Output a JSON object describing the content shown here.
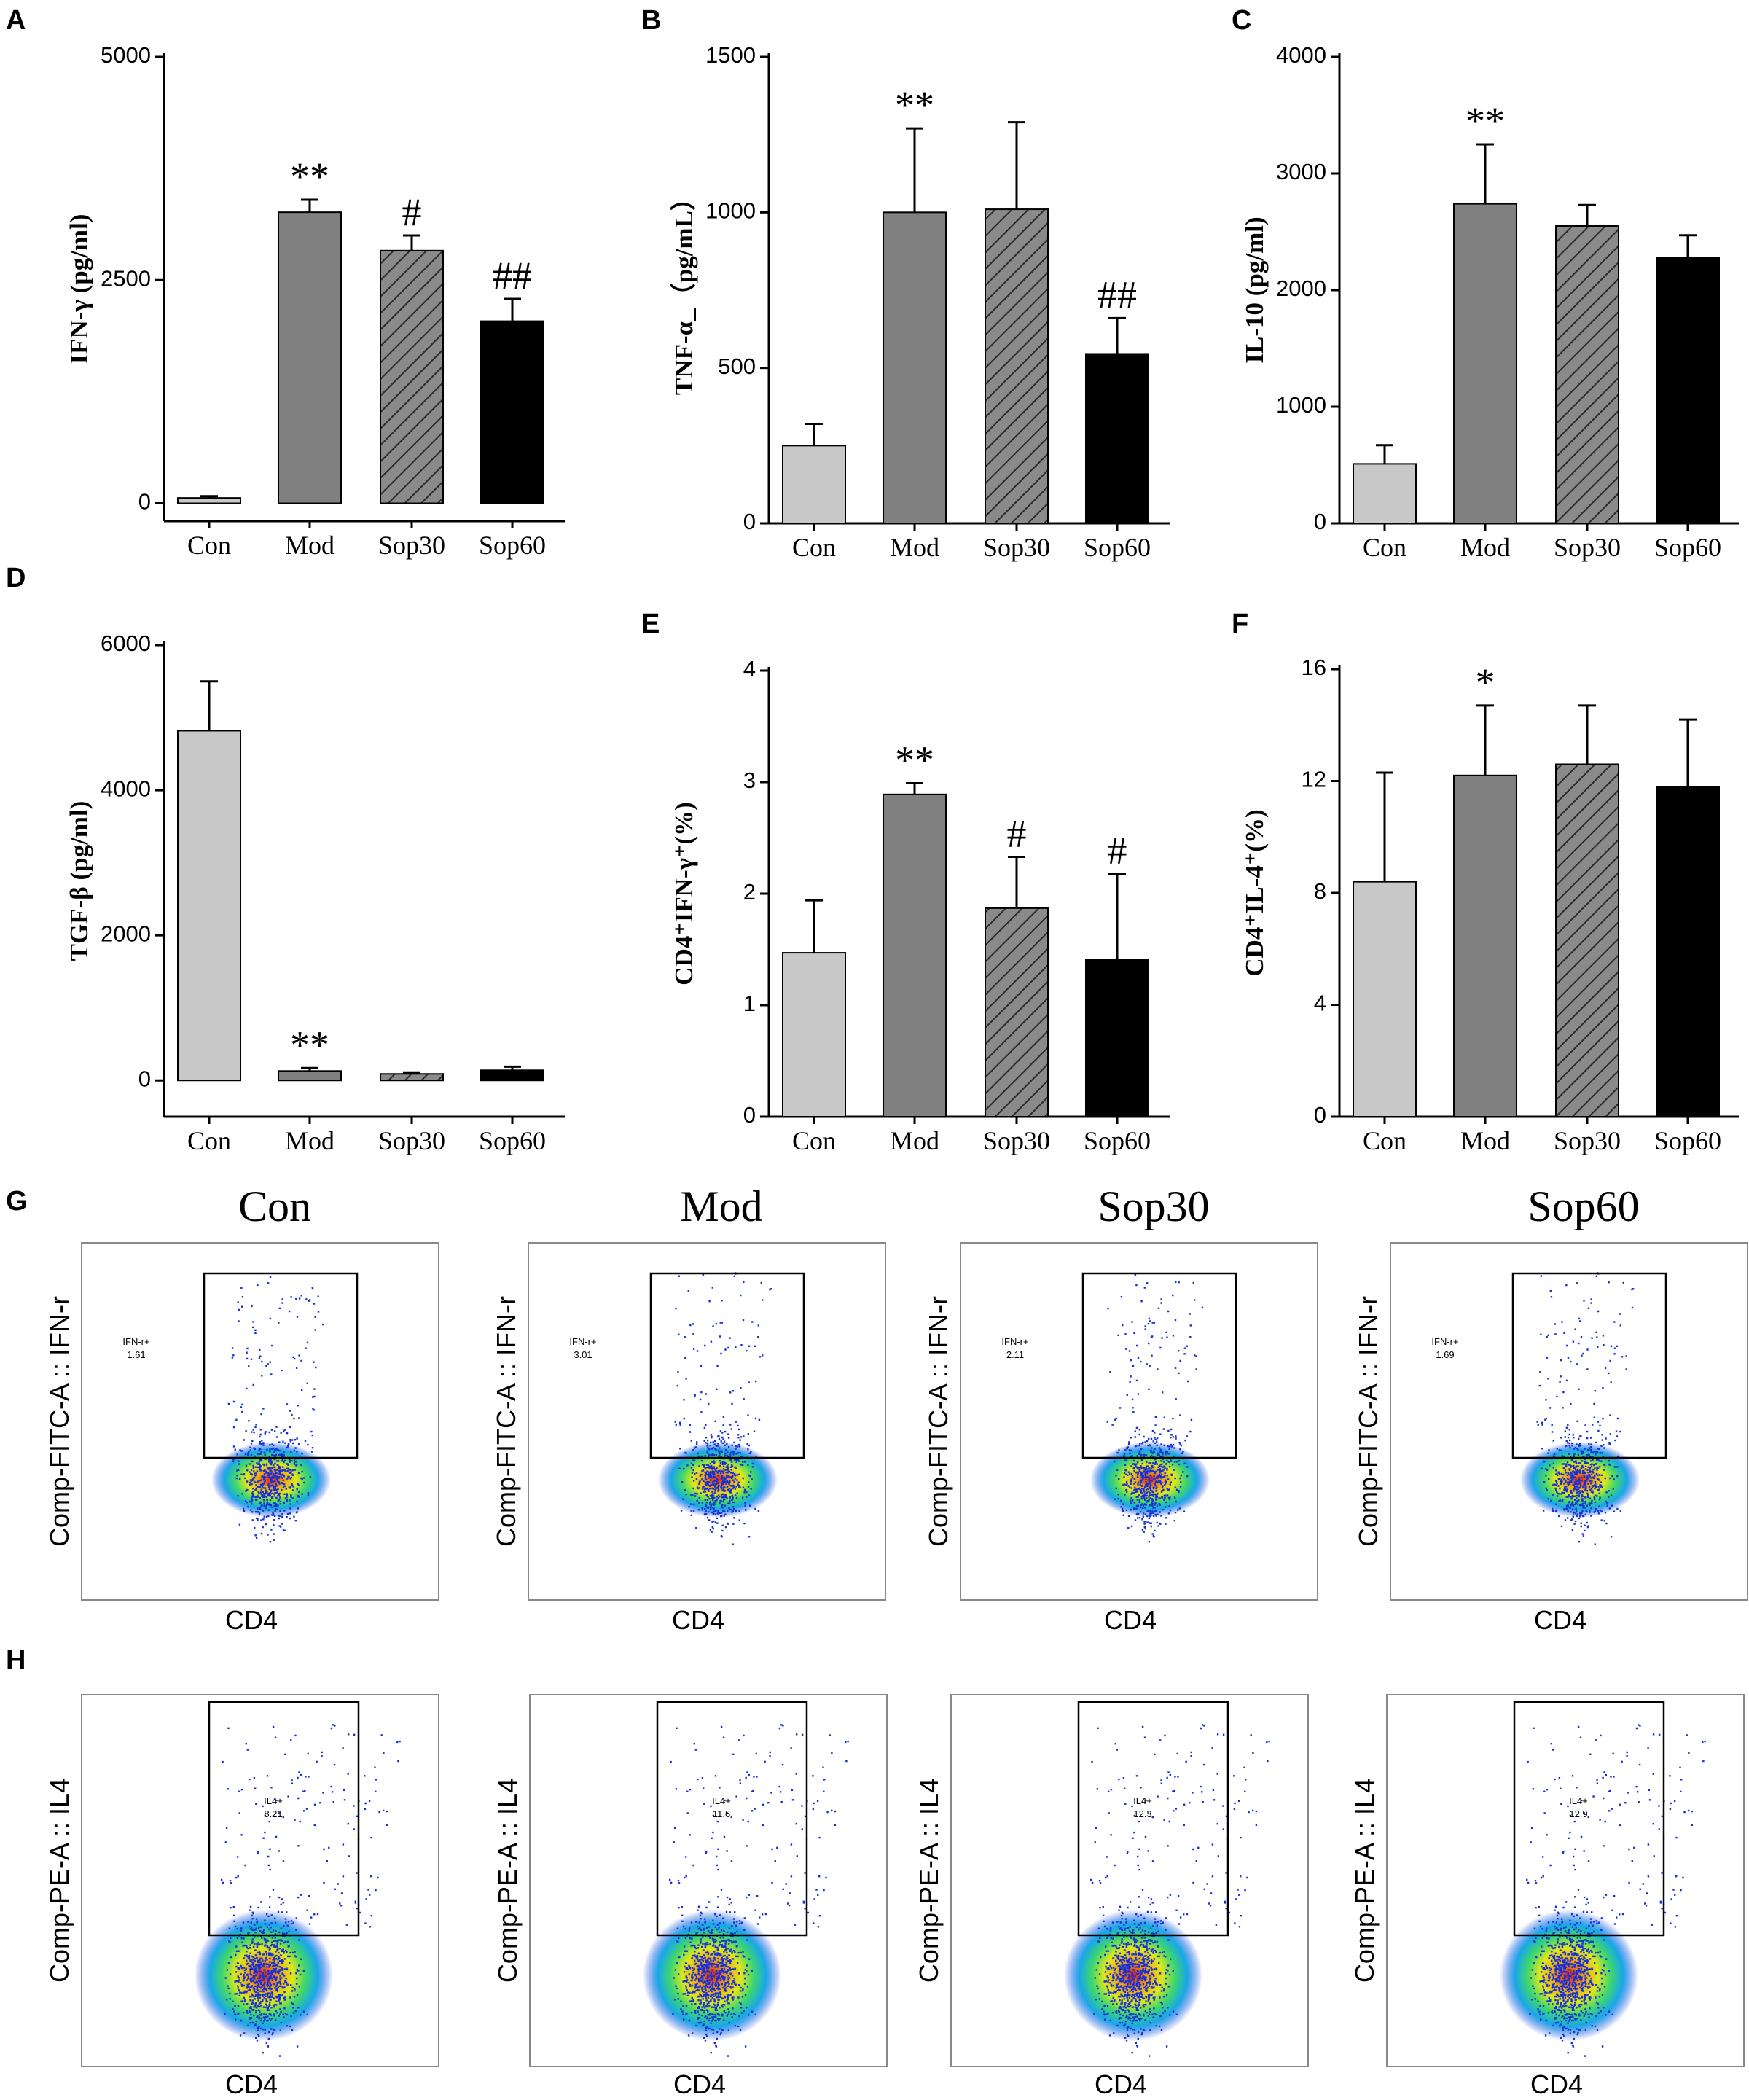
{
  "panel_letters": [
    "A",
    "B",
    "C",
    "D",
    "E",
    "F",
    "G",
    "H"
  ],
  "chart_data": [
    {
      "id": "A",
      "type": "bar",
      "categories": [
        "Con",
        "Mod",
        "Sop30",
        "Sop60"
      ],
      "values": [
        60,
        3260,
        2830,
        2040
      ],
      "errors": [
        20,
        140,
        170,
        250
      ],
      "annotations": [
        "",
        "**",
        "#",
        "##"
      ],
      "ylabel": "IFN-γ (pg/ml)",
      "ylim": [
        -200,
        5000
      ],
      "yticks": [
        0,
        2500,
        5000
      ],
      "ytick_labels": [
        "0",
        "2500",
        "5000"
      ]
    },
    {
      "id": "B",
      "type": "bar",
      "categories": [
        "Con",
        "Mod",
        "Sop30",
        "Sop60"
      ],
      "values": [
        250,
        1000,
        1010,
        545
      ],
      "errors": [
        70,
        270,
        280,
        115
      ],
      "annotations": [
        "",
        "**",
        "",
        "##"
      ],
      "ylabel": "TNF-α_（pg/mL）",
      "ylim": [
        0,
        1500
      ],
      "yticks": [
        0,
        500,
        1000,
        1500
      ],
      "ytick_labels": [
        "0",
        "500",
        "1000",
        "1500"
      ]
    },
    {
      "id": "C",
      "type": "bar",
      "categories": [
        "Con",
        "Mod",
        "Sop30",
        "Sop60"
      ],
      "values": [
        510,
        2740,
        2550,
        2280
      ],
      "errors": [
        160,
        510,
        180,
        190
      ],
      "annotations": [
        "",
        "**",
        "",
        ""
      ],
      "ylabel": "IL-10 (pg/ml)",
      "ylim": [
        0,
        4000
      ],
      "yticks": [
        0,
        1000,
        2000,
        3000,
        4000
      ],
      "ytick_labels": [
        "0",
        "1000",
        "2000",
        "3000",
        "4000"
      ]
    },
    {
      "id": "D",
      "type": "bar",
      "categories": [
        "Con",
        "Mod",
        "Sop30",
        "Sop60"
      ],
      "values": [
        4820,
        130,
        90,
        140
      ],
      "errors": [
        680,
        40,
        20,
        50
      ],
      "annotations": [
        "",
        "**",
        "",
        ""
      ],
      "ylabel": "TGF-β (pg/ml)",
      "ylim": [
        -500,
        6000
      ],
      "yticks": [
        0,
        2000,
        4000,
        6000
      ],
      "ytick_labels": [
        "0",
        "2000",
        "4000",
        "6000"
      ]
    },
    {
      "id": "E",
      "type": "bar",
      "categories": [
        "Con",
        "Mod",
        "Sop30",
        "Sop60"
      ],
      "values": [
        1.47,
        2.89,
        1.87,
        1.41
      ],
      "errors": [
        0.47,
        0.1,
        0.46,
        0.77
      ],
      "annotations": [
        "",
        "**",
        "#",
        "#"
      ],
      "ylabel": "CD4⁺IFN-γ⁺(%)",
      "ylim": [
        0,
        4
      ],
      "yticks": [
        0,
        1,
        2,
        3,
        4
      ],
      "ytick_labels": [
        "0",
        "1",
        "2",
        "3",
        "4"
      ]
    },
    {
      "id": "F",
      "type": "bar",
      "categories": [
        "Con",
        "Mod",
        "Sop30",
        "Sop60"
      ],
      "values": [
        8.4,
        12.2,
        12.6,
        11.8
      ],
      "errors": [
        3.9,
        2.5,
        2.1,
        2.4
      ],
      "annotations": [
        "",
        "*",
        "",
        ""
      ],
      "ylabel": "CD4⁺IL-4⁺(%)",
      "ylim": [
        0,
        16
      ],
      "yticks": [
        0,
        4,
        8,
        12,
        16
      ],
      "ytick_labels": [
        "0",
        "4",
        "8",
        "12",
        "16"
      ]
    }
  ],
  "flow_rows": [
    {
      "id": "G",
      "ylabel": "Comp-FITC-A :: IFN-r",
      "xlabel": "CD4",
      "gate": "IFN-r+",
      "titles": [
        "Con",
        "Mod",
        "Sop30",
        "Sop60"
      ],
      "values": [
        "1.61",
        "3.01",
        "2.11",
        "1.69"
      ]
    },
    {
      "id": "H",
      "ylabel": "Comp-PE-A :: IL4",
      "xlabel": "CD4",
      "gate": "IL4+",
      "titles": [],
      "values": [
        "8.21",
        "11.6",
        "12.3",
        "12.9"
      ]
    }
  ],
  "colors": {
    "Con": "#c8c8c8",
    "Mod": "#808080",
    "Sop30": "#808080",
    "Sop60": "#000000"
  }
}
